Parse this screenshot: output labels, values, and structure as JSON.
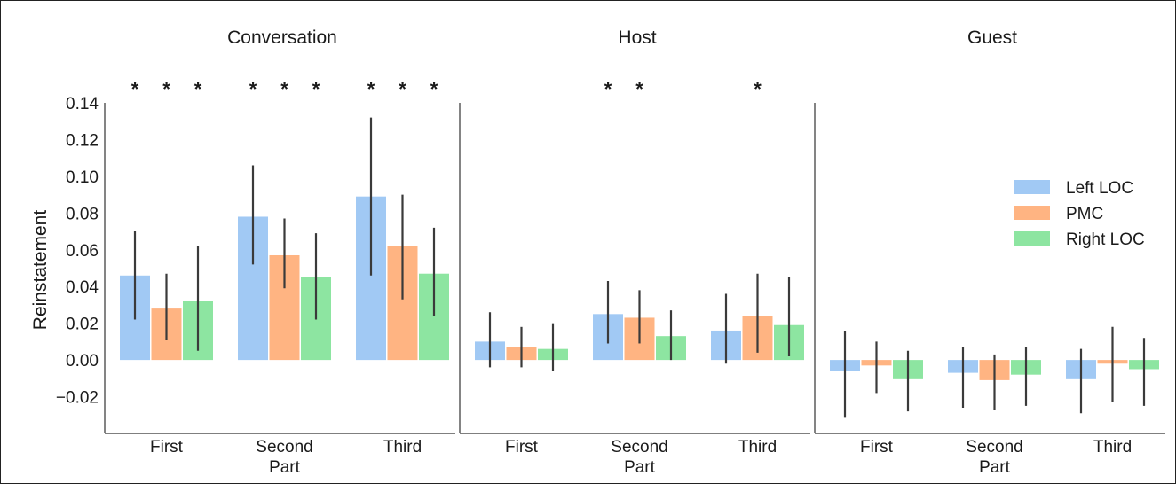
{
  "chart_data": {
    "type": "bar",
    "ylabel": "Reinstatement",
    "xlabel": "Part",
    "ylim": [
      -0.04,
      0.14
    ],
    "yticks": [
      "0.14",
      "0.12",
      "0.10",
      "0.08",
      "0.06",
      "0.04",
      "0.02",
      "0.00",
      "−0.02"
    ],
    "ytick_values": [
      0.14,
      0.12,
      0.1,
      0.08,
      0.06,
      0.04,
      0.02,
      0.0,
      -0.02
    ],
    "categories": [
      "First",
      "Second",
      "Third"
    ],
    "legend": {
      "placement": "right",
      "entries": [
        "Left LOC",
        "PMC",
        "Right LOC"
      ]
    },
    "colors": [
      "#a1c9f4",
      "#ffb482",
      "#8de5a1"
    ],
    "significance_marker": "*",
    "grid": false,
    "panels": [
      {
        "title": "Conversation",
        "series": [
          {
            "name": "Left LOC",
            "values": [
              0.046,
              0.078,
              0.089
            ],
            "ci_low": [
              0.022,
              0.052,
              0.046
            ],
            "ci_high": [
              0.07,
              0.106,
              0.132
            ]
          },
          {
            "name": "PMC",
            "values": [
              0.028,
              0.057,
              0.062
            ],
            "ci_low": [
              0.011,
              0.039,
              0.033
            ],
            "ci_high": [
              0.047,
              0.077,
              0.09
            ]
          },
          {
            "name": "Right LOC",
            "values": [
              0.032,
              0.045,
              0.047
            ],
            "ci_low": [
              0.005,
              0.022,
              0.024
            ],
            "ci_high": [
              0.062,
              0.069,
              0.072
            ]
          }
        ],
        "significant": [
          [
            true,
            true,
            true
          ],
          [
            true,
            true,
            true
          ],
          [
            true,
            true,
            true
          ]
        ]
      },
      {
        "title": "Host",
        "series": [
          {
            "name": "Left LOC",
            "values": [
              0.01,
              0.025,
              0.016
            ],
            "ci_low": [
              -0.004,
              0.009,
              -0.002
            ],
            "ci_high": [
              0.026,
              0.043,
              0.036
            ]
          },
          {
            "name": "PMC",
            "values": [
              0.007,
              0.023,
              0.024
            ],
            "ci_low": [
              -0.004,
              0.009,
              0.004
            ],
            "ci_high": [
              0.018,
              0.038,
              0.047
            ]
          },
          {
            "name": "Right LOC",
            "values": [
              0.006,
              0.013,
              0.019
            ],
            "ci_low": [
              -0.006,
              0.0,
              0.002
            ],
            "ci_high": [
              0.02,
              0.027,
              0.045
            ]
          }
        ],
        "significant": [
          [
            false,
            false,
            false
          ],
          [
            true,
            true,
            false
          ],
          [
            false,
            true,
            false
          ]
        ]
      },
      {
        "title": "Guest",
        "series": [
          {
            "name": "Left LOC",
            "values": [
              -0.006,
              -0.007,
              -0.01
            ],
            "ci_low": [
              -0.031,
              -0.026,
              -0.029
            ],
            "ci_high": [
              0.016,
              0.007,
              0.006
            ]
          },
          {
            "name": "PMC",
            "values": [
              -0.003,
              -0.011,
              -0.002
            ],
            "ci_low": [
              -0.018,
              -0.027,
              -0.023
            ],
            "ci_high": [
              0.01,
              0.003,
              0.018
            ]
          },
          {
            "name": "Right LOC",
            "values": [
              -0.01,
              -0.008,
              -0.005
            ],
            "ci_low": [
              -0.028,
              -0.025,
              -0.025
            ],
            "ci_high": [
              0.005,
              0.007,
              0.012
            ]
          }
        ],
        "significant": [
          [
            false,
            false,
            false
          ],
          [
            false,
            false,
            false
          ],
          [
            false,
            false,
            false
          ]
        ]
      }
    ]
  }
}
